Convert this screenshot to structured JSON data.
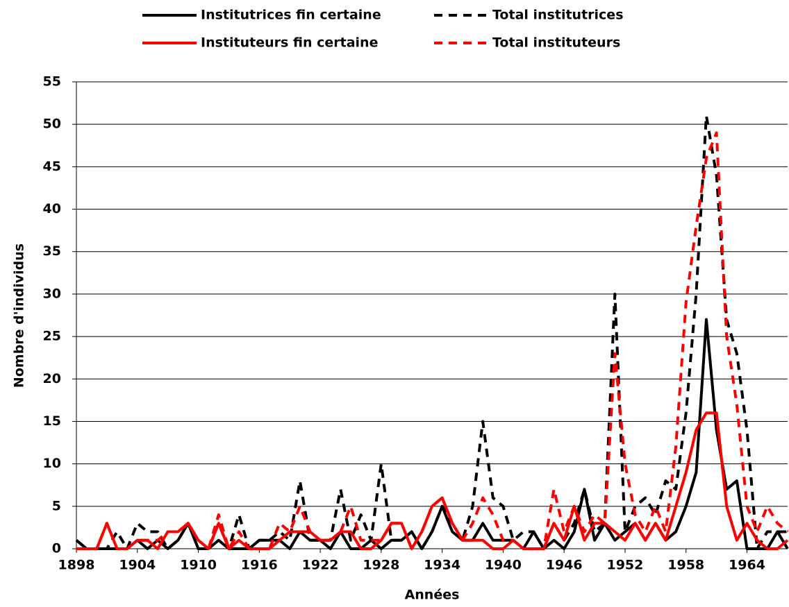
{
  "chart_data": {
    "type": "line",
    "xlabel": "Années",
    "ylabel": "Nombre d'individus",
    "x": [
      1898,
      1899,
      1900,
      1901,
      1902,
      1903,
      1904,
      1905,
      1906,
      1907,
      1908,
      1909,
      1910,
      1911,
      1912,
      1913,
      1914,
      1915,
      1916,
      1917,
      1918,
      1919,
      1920,
      1921,
      1922,
      1923,
      1924,
      1925,
      1926,
      1927,
      1928,
      1929,
      1930,
      1931,
      1932,
      1933,
      1934,
      1935,
      1936,
      1937,
      1938,
      1939,
      1940,
      1941,
      1942,
      1943,
      1944,
      1945,
      1946,
      1947,
      1948,
      1949,
      1950,
      1951,
      1952,
      1953,
      1954,
      1955,
      1956,
      1957,
      1958,
      1959,
      1960,
      1961,
      1962,
      1963,
      1964,
      1965,
      1966,
      1967,
      1968
    ],
    "xlim": [
      1898,
      1968
    ],
    "xticks": [
      1898,
      1904,
      1910,
      1916,
      1922,
      1928,
      1934,
      1940,
      1946,
      1952,
      1958,
      1964
    ],
    "ylim": [
      0,
      55
    ],
    "yticks": [
      0,
      5,
      10,
      15,
      20,
      25,
      30,
      35,
      40,
      45,
      50,
      55
    ],
    "grid": true,
    "legend": "top",
    "series": [
      {
        "name": "Institutrices fin certaine",
        "color": "#000000",
        "style": "solid",
        "values": [
          1,
          0,
          0,
          0,
          0,
          0,
          1,
          0,
          1,
          0,
          1,
          3,
          0,
          0,
          1,
          0,
          0,
          0,
          1,
          1,
          1,
          0,
          2,
          1,
          1,
          0,
          2,
          0,
          0,
          1,
          0,
          1,
          1,
          2,
          0,
          2,
          5,
          2,
          1,
          1,
          3,
          1,
          1,
          1,
          0,
          2,
          0,
          1,
          0,
          2,
          7,
          1,
          3,
          1,
          2,
          3,
          1,
          3,
          1,
          2,
          5,
          9,
          27,
          14,
          7,
          8,
          0,
          0,
          0,
          2,
          0
        ]
      },
      {
        "name": "Total institutrices",
        "color": "#000000",
        "style": "dashed",
        "values": [
          1,
          0,
          0,
          0,
          2,
          0,
          3,
          2,
          2,
          0,
          1,
          3,
          0,
          0,
          3,
          0,
          4,
          0,
          1,
          1,
          2,
          1,
          8,
          1,
          1,
          1,
          7,
          1,
          4,
          1,
          10,
          1,
          1,
          2,
          0,
          2,
          5,
          3,
          1,
          5,
          15,
          6,
          5,
          1,
          2,
          2,
          0,
          3,
          1,
          3,
          7,
          2,
          3,
          30,
          2,
          5,
          6,
          4,
          8,
          7,
          16,
          30,
          51,
          44,
          27,
          23,
          14,
          0,
          2,
          2,
          2
        ]
      },
      {
        "name": "Instituteurs fin certaine",
        "color": "#ff0000",
        "style": "solid",
        "values": [
          0,
          0,
          0,
          3,
          0,
          0,
          1,
          1,
          0,
          2,
          2,
          3,
          1,
          0,
          3,
          0,
          1,
          0,
          0,
          0,
          1,
          2,
          2,
          2,
          1,
          1,
          2,
          2,
          0,
          0,
          1,
          3,
          3,
          0,
          2,
          5,
          6,
          3,
          1,
          1,
          1,
          0,
          0,
          1,
          0,
          0,
          0,
          3,
          1,
          5,
          1,
          3,
          3,
          2,
          1,
          3,
          1,
          3,
          1,
          5,
          9,
          14,
          16,
          16,
          5,
          1,
          3,
          1,
          0,
          0,
          1
        ]
      },
      {
        "name": "Total instituteurs",
        "color": "#ff0000",
        "style": "dashed",
        "values": [
          0,
          0,
          0,
          3,
          0,
          0,
          1,
          1,
          1,
          2,
          2,
          3,
          1,
          0,
          4,
          0,
          2,
          0,
          0,
          0,
          3,
          2,
          5,
          2,
          1,
          1,
          2,
          5,
          1,
          1,
          1,
          3,
          3,
          0,
          2,
          5,
          6,
          3,
          1,
          3,
          6,
          4,
          1,
          1,
          0,
          0,
          0,
          7,
          2,
          5,
          2,
          4,
          3,
          23,
          10,
          4,
          2,
          5,
          2,
          12,
          29,
          38,
          46,
          49,
          25,
          17,
          5,
          2,
          5,
          3,
          2
        ]
      }
    ]
  }
}
